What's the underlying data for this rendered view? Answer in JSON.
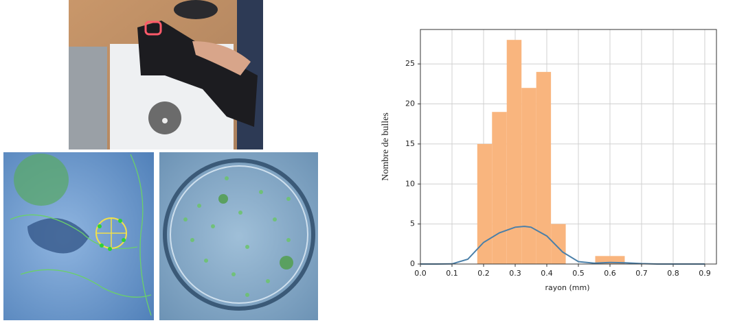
{
  "chart_data": {
    "type": "histogram",
    "ylabel": "Nombre de bulles",
    "xlabel": "rayon (mm)",
    "bins": [
      0.18,
      0.2267,
      0.2733,
      0.32,
      0.3667,
      0.4133,
      0.46,
      0.5067,
      0.5533,
      0.6,
      0.6467
    ],
    "counts": [
      15,
      19,
      28,
      22,
      24,
      5,
      0,
      0,
      1,
      1
    ],
    "color": "#f9b57e",
    "kde": {
      "color": "#4a7fa8",
      "x": [
        0,
        0.05,
        0.1,
        0.15,
        0.2,
        0.25,
        0.3,
        0.33,
        0.35,
        0.4,
        0.45,
        0.5,
        0.55,
        0.6,
        0.65,
        0.7,
        0.75,
        0.8,
        0.9
      ],
      "values": [
        0,
        0,
        0.02,
        0.6,
        2.7,
        3.9,
        4.6,
        4.7,
        4.6,
        3.5,
        1.5,
        0.3,
        0.1,
        0.2,
        0.15,
        0.05,
        0,
        0,
        0
      ]
    },
    "xlim": [
      0,
      0.937
    ],
    "ylim": [
      0,
      29.3
    ],
    "xticks": [
      {
        "value": 0,
        "label": "0.0"
      },
      0.1,
      0.2,
      0.3,
      0.4,
      0.5,
      0.6,
      0.7,
      0.8,
      0.9
    ],
    "yticks": [
      0,
      5,
      10,
      15,
      20,
      25
    ],
    "grid": true
  }
}
